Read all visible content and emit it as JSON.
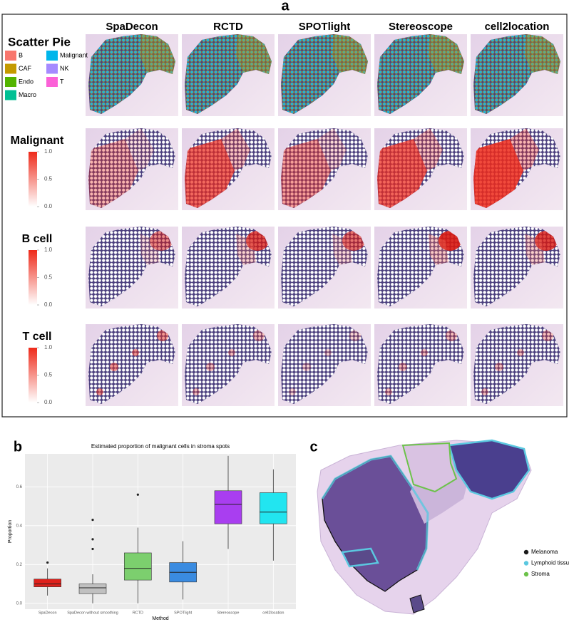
{
  "panel_labels": [
    "a",
    "b",
    "c"
  ],
  "panel_a": {
    "columns": [
      "SpaDecon",
      "RCTD",
      "SPOTlight",
      "Stereoscope",
      "cell2location"
    ],
    "rows": [
      {
        "title": "Scatter Pie",
        "legend": [
          {
            "label": "B",
            "color": "#f8766d"
          },
          {
            "label": "CAF",
            "color": "#c49a00"
          },
          {
            "label": "Endo",
            "color": "#53b400"
          },
          {
            "label": "Macro",
            "color": "#00c094"
          },
          {
            "label": "Malignant",
            "color": "#00b6eb"
          },
          {
            "label": "NK",
            "color": "#a58aff"
          },
          {
            "label": "T",
            "color": "#fb61d7"
          }
        ]
      },
      {
        "title": "Malignant",
        "scale": [
          {
            "value": 0,
            "label": "0.0"
          },
          {
            "value": 0.5,
            "label": "0.5"
          },
          {
            "value": 1,
            "label": "1.0"
          }
        ]
      },
      {
        "title": "B cell",
        "scale": [
          {
            "value": 0,
            "label": "0.0"
          },
          {
            "value": 0.5,
            "label": "0.5"
          },
          {
            "value": 1,
            "label": "1.0"
          }
        ]
      },
      {
        "title": "T cell",
        "scale": [
          {
            "value": 0,
            "label": "0.0"
          },
          {
            "value": 0.5,
            "label": "0.5"
          },
          {
            "value": 1,
            "label": "1.0"
          }
        ]
      }
    ]
  },
  "chart_data": {
    "type": "box",
    "title": "Estimated proportion of malignant cells in stroma spots",
    "x_label": "Method",
    "y_label": "Proportion",
    "categories": [
      "SpaDecon",
      "SpaDecon without smoothing",
      "RCTD",
      "SPOTlight",
      "Stereoscope",
      "cell2location"
    ],
    "boxes": [
      {
        "color": "#e0201b",
        "whisker_low": 0.04,
        "q1": 0.085,
        "median": 0.1,
        "q3": 0.125,
        "whisker_high": 0.18,
        "outliers": [
          0.21
        ]
      },
      {
        "color": "#c0c0c0",
        "whisker_low": 0.0,
        "q1": 0.05,
        "median": 0.08,
        "q3": 0.1,
        "whisker_high": 0.15,
        "outliers": [
          0.43,
          0.33,
          0.28
        ]
      },
      {
        "color": "#7ccf6e",
        "whisker_low": 0.0,
        "q1": 0.12,
        "median": 0.18,
        "q3": 0.26,
        "whisker_high": 0.39,
        "outliers": [
          0.56
        ]
      },
      {
        "color": "#3a8be0",
        "whisker_low": 0.02,
        "q1": 0.11,
        "median": 0.16,
        "q3": 0.21,
        "whisker_high": 0.32,
        "outliers": []
      },
      {
        "color": "#a93ef0",
        "whisker_low": 0.28,
        "q1": 0.41,
        "median": 0.51,
        "q3": 0.58,
        "whisker_high": 0.76,
        "outliers": []
      },
      {
        "color": "#22e5f0",
        "whisker_low": 0.22,
        "q1": 0.41,
        "median": 0.47,
        "q3": 0.57,
        "whisker_high": 0.69,
        "outliers": []
      }
    ],
    "ylim": [
      -0.03,
      0.77
    ],
    "yticks": [
      {
        "value": 0,
        "label": "0.0"
      },
      {
        "value": 0.2,
        "label": "0.2"
      },
      {
        "value": 0.4,
        "label": "0.4"
      },
      {
        "value": 0.6,
        "label": "0.6"
      }
    ],
    "grid": true
  },
  "panel_c": {
    "legend": [
      {
        "label": "Melanoma",
        "color": "#1a1a1a"
      },
      {
        "label": "Lymphoid tissue",
        "color": "#5bc8e0"
      },
      {
        "label": "Stroma",
        "color": "#6cc24a"
      }
    ]
  }
}
